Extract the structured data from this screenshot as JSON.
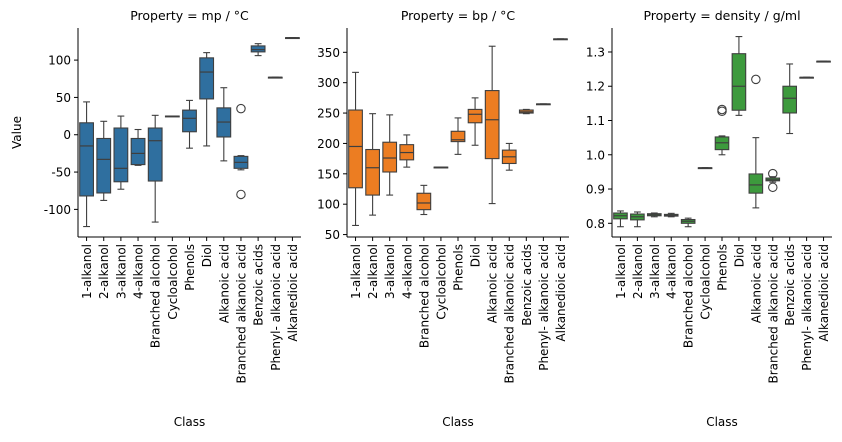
{
  "figure": {
    "ylabel": "Value",
    "xlabel": "Class"
  },
  "chart_data": [
    {
      "type": "box",
      "title": "Property = mp / °C",
      "xlabel": "Class",
      "ylabel": "Value",
      "color": "#2f6f9f",
      "ylim": [
        -137,
        143
      ],
      "yticks": [
        -100,
        -50,
        0,
        50,
        100
      ],
      "categories": [
        "1-alkanol",
        "2-alkanol",
        "3-alkanol",
        "4-alkanol",
        "Branched alcohol",
        "Cycloalcohol",
        "Phenols",
        "Diol",
        "Alkanoic acid",
        "Branched alkanoic acid",
        "Benzoic acids",
        "Phenyl- alkanoic acid",
        "Alkanedioic acid"
      ],
      "boxes": [
        {
          "wlo": -123,
          "q1": -82,
          "med": -15,
          "q3": 16,
          "whi": 44,
          "fliers": []
        },
        {
          "wlo": -88,
          "q1": -78,
          "med": -33,
          "q3": -5,
          "whi": 18,
          "fliers": []
        },
        {
          "wlo": -73,
          "q1": -63,
          "med": -45,
          "q3": 9,
          "whi": 25,
          "fliers": []
        },
        {
          "wlo": -41,
          "q1": -40,
          "med": -25,
          "q3": -5,
          "whi": 7,
          "fliers": []
        },
        {
          "wlo": -117,
          "q1": -62,
          "med": -8,
          "q3": 9,
          "whi": 26,
          "fliers": []
        },
        {
          "wlo": 25,
          "q1": 25,
          "med": 25,
          "q3": 25,
          "whi": 25,
          "fliers": []
        },
        {
          "wlo": -18,
          "q1": 4,
          "med": 22,
          "q3": 33,
          "whi": 46,
          "fliers": []
        },
        {
          "wlo": -15,
          "q1": 48,
          "med": 84,
          "q3": 103,
          "whi": 110,
          "fliers": []
        },
        {
          "wlo": -35,
          "q1": -3,
          "med": 17,
          "q3": 36,
          "whi": 63,
          "fliers": []
        },
        {
          "wlo": -47,
          "q1": -45,
          "med": -37,
          "q3": -29,
          "whi": -28,
          "fliers": [
            35,
            -80
          ]
        },
        {
          "wlo": 106,
          "q1": 111,
          "med": 114,
          "q3": 119,
          "whi": 122,
          "fliers": []
        },
        {
          "wlo": 77,
          "q1": 77,
          "med": 77,
          "q3": 77,
          "whi": 77,
          "fliers": []
        },
        {
          "wlo": 130,
          "q1": 130,
          "med": 130,
          "q3": 130,
          "whi": 130,
          "fliers": []
        }
      ]
    },
    {
      "type": "box",
      "title": "Property = bp / °C",
      "xlabel": "Class",
      "ylabel": "",
      "color": "#ec7d22",
      "ylim": [
        46,
        390
      ],
      "yticks": [
        50,
        100,
        150,
        200,
        250,
        300,
        350
      ],
      "categories": [
        "1-alkanol",
        "2-alkanol",
        "3-alkanol",
        "4-alkanol",
        "Branched alcohol",
        "Cycloalcohol",
        "Phenols",
        "Diol",
        "Alkanoic acid",
        "Branched alkanoic acid",
        "Benzoic acids",
        "Phenyl- alkanoic acid",
        "Alkanedioic acid"
      ],
      "boxes": [
        {
          "wlo": 65,
          "q1": 127,
          "med": 195,
          "q3": 255,
          "whi": 317,
          "fliers": []
        },
        {
          "wlo": 82,
          "q1": 115,
          "med": 160,
          "q3": 190,
          "whi": 249,
          "fliers": []
        },
        {
          "wlo": 115,
          "q1": 153,
          "med": 176,
          "q3": 202,
          "whi": 247,
          "fliers": []
        },
        {
          "wlo": 161,
          "q1": 173,
          "med": 185,
          "q3": 198,
          "whi": 214,
          "fliers": []
        },
        {
          "wlo": 83,
          "q1": 91,
          "med": 102,
          "q3": 118,
          "whi": 131,
          "fliers": []
        },
        {
          "wlo": 161,
          "q1": 161,
          "med": 161,
          "q3": 161,
          "whi": 161,
          "fliers": []
        },
        {
          "wlo": 182,
          "q1": 203,
          "med": 206,
          "q3": 220,
          "whi": 242,
          "fliers": []
        },
        {
          "wlo": 197,
          "q1": 234,
          "med": 248,
          "q3": 256,
          "whi": 275,
          "fliers": []
        },
        {
          "wlo": 101,
          "q1": 175,
          "med": 239,
          "q3": 287,
          "whi": 360,
          "fliers": []
        },
        {
          "wlo": 156,
          "q1": 167,
          "med": 178,
          "q3": 189,
          "whi": 200,
          "fliers": []
        },
        {
          "wlo": 249,
          "q1": 250,
          "med": 252,
          "q3": 255,
          "whi": 256,
          "fliers": []
        },
        {
          "wlo": 265,
          "q1": 265,
          "med": 265,
          "q3": 265,
          "whi": 265,
          "fliers": []
        },
        {
          "wlo": 372,
          "q1": 372,
          "med": 372,
          "q3": 372,
          "whi": 372,
          "fliers": []
        }
      ]
    },
    {
      "type": "box",
      "title": "Property = density / g/ml",
      "xlabel": "Class",
      "ylabel": "",
      "color": "#3d9a3d",
      "ylim": [
        0.76,
        1.37
      ],
      "yticks": [
        0.8,
        0.9,
        1.0,
        1.1,
        1.2,
        1.3
      ],
      "ytick_labels": [
        "0.8",
        "0.9",
        "1.0",
        "1.1",
        "1.2",
        "1.3"
      ],
      "categories": [
        "1-alkanol",
        "2-alkanol",
        "3-alkanol",
        "4-alkanol",
        "Branched alcohol",
        "Cycloalcohol",
        "Phenols",
        "Diol",
        "Alkanoic acid",
        "Branched alkanoic acid",
        "Benzoic acids",
        "Phenyl- alkanoic acid",
        "Alkanedioic acid"
      ],
      "boxes": [
        {
          "wlo": 0.79,
          "q1": 0.813,
          "med": 0.822,
          "q3": 0.83,
          "whi": 0.836,
          "fliers": []
        },
        {
          "wlo": 0.79,
          "q1": 0.81,
          "med": 0.819,
          "q3": 0.827,
          "whi": 0.833,
          "fliers": []
        },
        {
          "wlo": 0.819,
          "q1": 0.822,
          "med": 0.825,
          "q3": 0.828,
          "whi": 0.83,
          "fliers": []
        },
        {
          "wlo": 0.819,
          "q1": 0.821,
          "med": 0.823,
          "q3": 0.826,
          "whi": 0.829,
          "fliers": []
        },
        {
          "wlo": 0.79,
          "q1": 0.8,
          "med": 0.806,
          "q3": 0.811,
          "whi": 0.815,
          "fliers": []
        },
        {
          "wlo": 0.962,
          "q1": 0.962,
          "med": 0.962,
          "q3": 0.962,
          "whi": 0.962,
          "fliers": []
        },
        {
          "wlo": 1.0,
          "q1": 1.015,
          "med": 1.035,
          "q3": 1.052,
          "whi": 1.055,
          "fliers": [
            1.127,
            1.132
          ]
        },
        {
          "wlo": 1.115,
          "q1": 1.13,
          "med": 1.2,
          "q3": 1.295,
          "whi": 1.345,
          "fliers": []
        },
        {
          "wlo": 0.845,
          "q1": 0.888,
          "med": 0.912,
          "q3": 0.944,
          "whi": 1.05,
          "fliers": [
            1.22
          ]
        },
        {
          "wlo": 0.92,
          "q1": 0.924,
          "med": 0.927,
          "q3": 0.932,
          "whi": 0.936,
          "fliers": [
            0.945,
            0.905
          ]
        },
        {
          "wlo": 1.062,
          "q1": 1.122,
          "med": 1.165,
          "q3": 1.2,
          "whi": 1.265,
          "fliers": []
        },
        {
          "wlo": 1.226,
          "q1": 1.226,
          "med": 1.226,
          "q3": 1.226,
          "whi": 1.226,
          "fliers": []
        },
        {
          "wlo": 1.273,
          "q1": 1.273,
          "med": 1.273,
          "q3": 1.273,
          "whi": 1.273,
          "fliers": []
        }
      ]
    }
  ]
}
